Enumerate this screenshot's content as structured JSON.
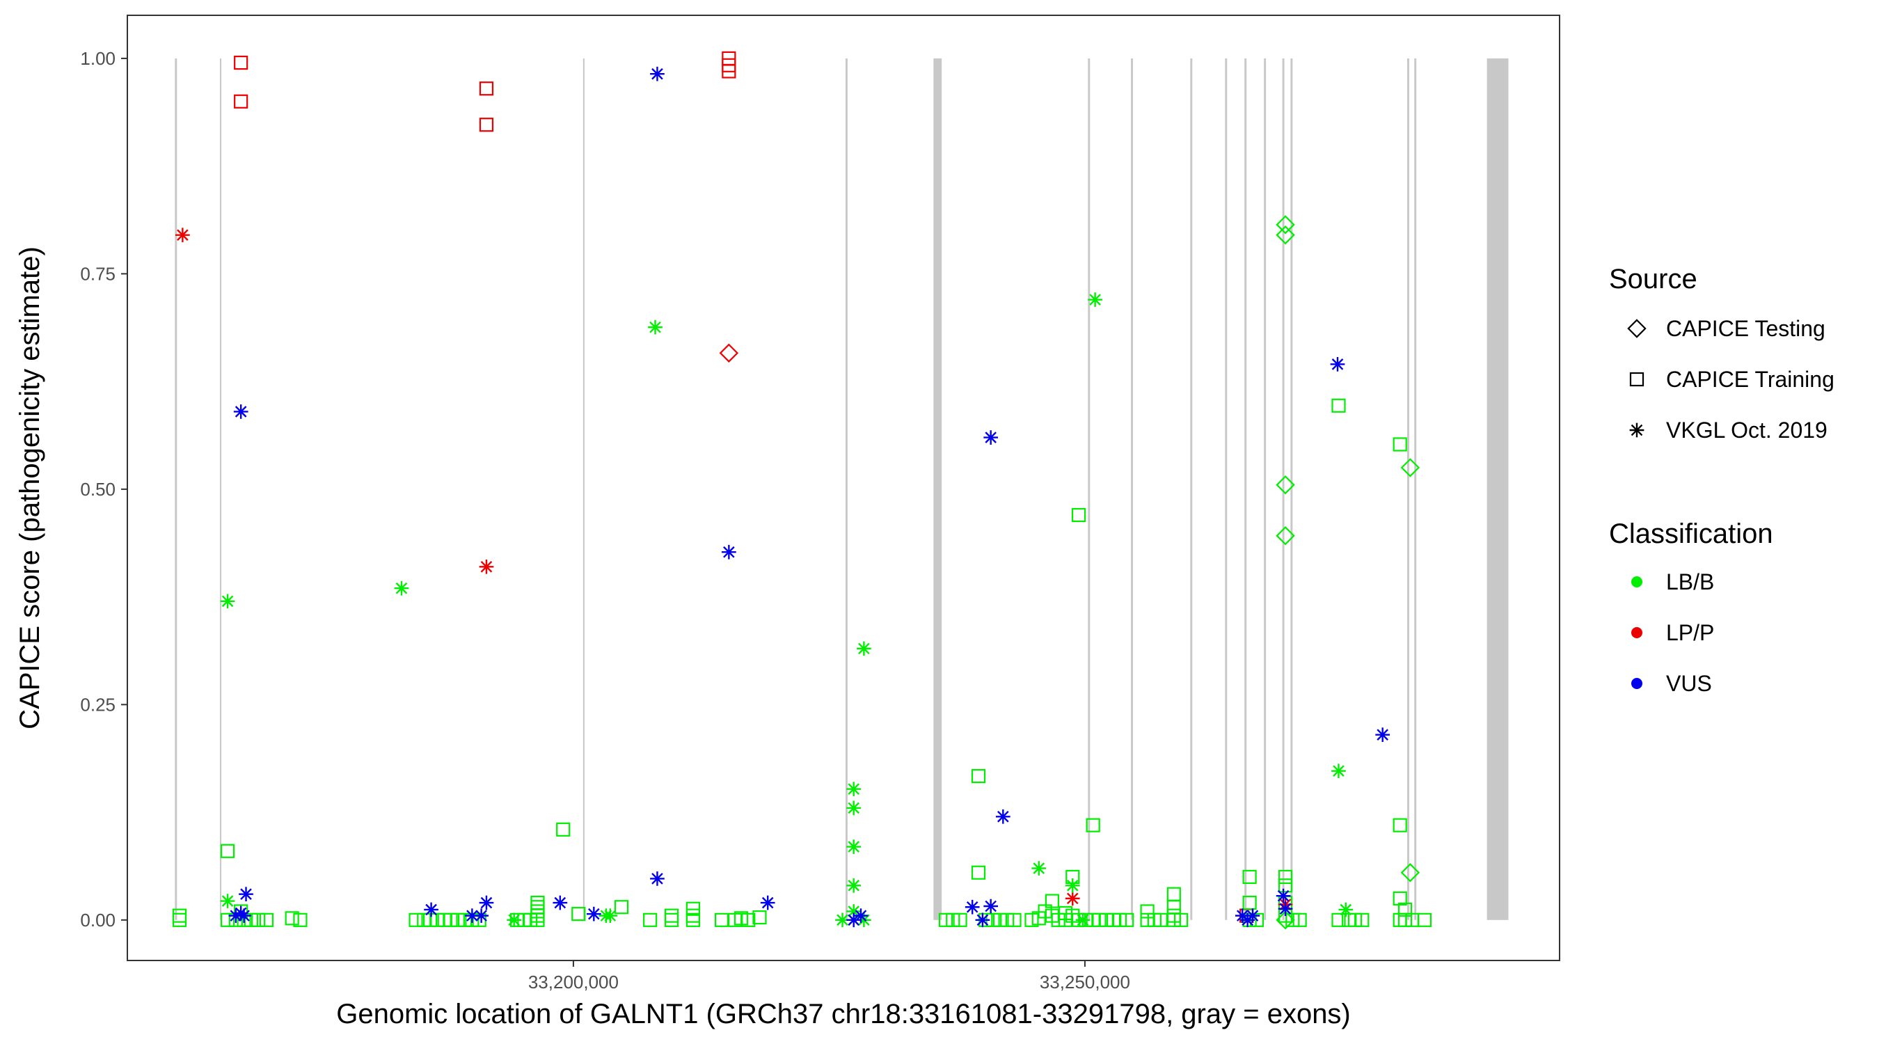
{
  "chart_data": {
    "type": "scatter",
    "title": "",
    "xlabel": "Genomic location of GALNT1 (GRCh37 chr18:33161081-33291798, gray = exons)",
    "ylabel": "CAPICE score (pathogenicity estimate)",
    "xlim": [
      33156400,
      33296400
    ],
    "ylim": [
      -0.047,
      1.05
    ],
    "x_ticks": [
      33200000,
      33250000
    ],
    "x_tick_labels": [
      "33,200,000",
      "33,250,000"
    ],
    "y_ticks": [
      0,
      0.25,
      0.5,
      0.75,
      1.0
    ],
    "y_tick_labels": [
      "0.00",
      "0.25",
      "0.50",
      "0.75",
      "1.00"
    ],
    "grid": false,
    "exons": [
      [
        33161050,
        33161250
      ],
      [
        33165450,
        33165550
      ],
      [
        33200950,
        33201050
      ],
      [
        33226600,
        33226800
      ],
      [
        33235200,
        33236000
      ],
      [
        33250300,
        33250500
      ],
      [
        33254500,
        33254700
      ],
      [
        33260300,
        33260500
      ],
      [
        33263700,
        33263900
      ],
      [
        33265600,
        33265800
      ],
      [
        33267500,
        33267700
      ],
      [
        33269300,
        33269500
      ],
      [
        33270100,
        33270300
      ],
      [
        33281500,
        33281700
      ],
      [
        33282200,
        33282400
      ],
      [
        33289300,
        33291400
      ]
    ],
    "legend": {
      "placement": "right",
      "source": {
        "title": "Source",
        "items": [
          {
            "label": "CAPICE Testing",
            "shape": "diamond"
          },
          {
            "label": "CAPICE Training",
            "shape": "square"
          },
          {
            "label": "VKGL Oct. 2019",
            "shape": "asterisk"
          }
        ]
      },
      "classification": {
        "title": "Classification",
        "items": [
          {
            "label": "LB/B",
            "color": "#00ee00"
          },
          {
            "label": "LP/P",
            "color": "#ee0000"
          },
          {
            "label": "VUS",
            "color": "#0000ee"
          }
        ]
      }
    },
    "series": [
      {
        "source": "CAPICE Training",
        "classification": "LP/P",
        "points": [
          [
            33167500,
            0.995
          ],
          [
            33167500,
            0.95
          ],
          [
            33191500,
            0.965
          ],
          [
            33191500,
            0.923
          ],
          [
            33215200,
            1.0
          ],
          [
            33215200,
            0.992
          ],
          [
            33215200,
            0.985
          ],
          [
            33265800,
            0.005
          ]
        ]
      },
      {
        "source": "CAPICE Training",
        "classification": "LB/B",
        "points": [
          [
            33161500,
            0.005
          ],
          [
            33161500,
            0.0
          ],
          [
            33166200,
            0.08
          ],
          [
            33166200,
            0.0
          ],
          [
            33167000,
            0.0
          ],
          [
            33167500,
            0.01
          ],
          [
            33167800,
            0.0
          ],
          [
            33168500,
            0.0
          ],
          [
            33169200,
            0.0
          ],
          [
            33170000,
            0.0
          ],
          [
            33172500,
            0.002
          ],
          [
            33173300,
            0.0
          ],
          [
            33184600,
            0.0
          ],
          [
            33185400,
            0.0
          ],
          [
            33186000,
            0.0
          ],
          [
            33186700,
            0.0
          ],
          [
            33187400,
            0.0
          ],
          [
            33188000,
            0.0
          ],
          [
            33188700,
            0.0
          ],
          [
            33189400,
            0.0
          ],
          [
            33190100,
            0.0
          ],
          [
            33190800,
            0.0
          ],
          [
            33194500,
            0.0
          ],
          [
            33195200,
            0.0
          ],
          [
            33195800,
            0.0
          ],
          [
            33196500,
            0.0
          ],
          [
            33196500,
            0.005
          ],
          [
            33196500,
            0.01
          ],
          [
            33196500,
            0.015
          ],
          [
            33196500,
            0.02
          ],
          [
            33199000,
            0.105
          ],
          [
            33200500,
            0.007
          ],
          [
            33204700,
            0.015
          ],
          [
            33207500,
            0.0
          ],
          [
            33209600,
            0.005
          ],
          [
            33209600,
            0.0
          ],
          [
            33211700,
            0.0
          ],
          [
            33211700,
            0.005
          ],
          [
            33211700,
            0.013
          ],
          [
            33214500,
            0.0
          ],
          [
            33215800,
            0.0
          ],
          [
            33216400,
            0.002
          ],
          [
            33217100,
            0.0
          ],
          [
            33218200,
            0.003
          ],
          [
            33236400,
            0.0
          ],
          [
            33237100,
            0.0
          ],
          [
            33237800,
            0.0
          ],
          [
            33239600,
            0.167
          ],
          [
            33239600,
            0.055
          ],
          [
            33240300,
            0.0
          ],
          [
            33241000,
            0.0
          ],
          [
            33241700,
            0.0
          ],
          [
            33242400,
            0.0
          ],
          [
            33243100,
            0.0
          ],
          [
            33244800,
            0.0
          ],
          [
            33245500,
            0.002
          ],
          [
            33246100,
            0.01
          ],
          [
            33246800,
            0.005
          ],
          [
            33246800,
            0.022
          ],
          [
            33247400,
            0.0
          ],
          [
            33248100,
            0.0
          ],
          [
            33248100,
            0.008
          ],
          [
            33248800,
            0.005
          ],
          [
            33248800,
            0.05
          ],
          [
            33249400,
            0.47
          ],
          [
            33249400,
            0.0
          ],
          [
            33250100,
            0.0
          ],
          [
            33250800,
            0.0
          ],
          [
            33250800,
            0.11
          ],
          [
            33251400,
            0.0
          ],
          [
            33252100,
            0.0
          ],
          [
            33252800,
            0.0
          ],
          [
            33253400,
            0.0
          ],
          [
            33254100,
            0.0
          ],
          [
            33256100,
            0.01
          ],
          [
            33256100,
            0.0
          ],
          [
            33256800,
            0.0
          ],
          [
            33257400,
            0.0
          ],
          [
            33258700,
            0.03
          ],
          [
            33258700,
            0.015
          ],
          [
            33258700,
            0.005
          ],
          [
            33258700,
            0.0
          ],
          [
            33259400,
            0.0
          ],
          [
            33266100,
            0.05
          ],
          [
            33266100,
            0.02
          ],
          [
            33266100,
            0.0
          ],
          [
            33266800,
            0.0
          ],
          [
            33269600,
            0.05
          ],
          [
            33269600,
            0.04
          ],
          [
            33269600,
            0.02
          ],
          [
            33269600,
            0.005
          ],
          [
            33270300,
            0.0
          ],
          [
            33271000,
            0.0
          ],
          [
            33274800,
            0.597
          ],
          [
            33274800,
            0.0
          ],
          [
            33275800,
            0.0
          ],
          [
            33276400,
            0.0
          ],
          [
            33277100,
            0.0
          ],
          [
            33280800,
            0.552
          ],
          [
            33280800,
            0.11
          ],
          [
            33280800,
            0.025
          ],
          [
            33280800,
            0.0
          ],
          [
            33281300,
            0.012
          ],
          [
            33281300,
            0.0
          ],
          [
            33282000,
            0.0
          ],
          [
            33283200,
            0.0
          ]
        ]
      },
      {
        "source": "CAPICE Testing",
        "classification": "LP/P",
        "points": [
          [
            33215200,
            0.658
          ]
        ]
      },
      {
        "source": "CAPICE Testing",
        "classification": "LB/B",
        "points": [
          [
            33269600,
            0.807
          ],
          [
            33269600,
            0.795
          ],
          [
            33269600,
            0.505
          ],
          [
            33269600,
            0.446
          ],
          [
            33281800,
            0.525
          ],
          [
            33281800,
            0.055
          ],
          [
            33269600,
            0.0
          ]
        ]
      },
      {
        "source": "VKGL Oct. 2019",
        "classification": "LP/P",
        "points": [
          [
            33161800,
            0.795
          ],
          [
            33191500,
            0.41
          ],
          [
            33248800,
            0.025
          ],
          [
            33269600,
            0.018
          ]
        ]
      },
      {
        "source": "VKGL Oct. 2019",
        "classification": "LB/B",
        "points": [
          [
            33166200,
            0.022
          ],
          [
            33166200,
            0.37
          ],
          [
            33183200,
            0.385
          ],
          [
            33194200,
            0.0
          ],
          [
            33203200,
            0.005
          ],
          [
            33203600,
            0.005
          ],
          [
            33208000,
            0.688
          ],
          [
            33226300,
            0.0
          ],
          [
            33227400,
            0.152
          ],
          [
            33227400,
            0.13
          ],
          [
            33227400,
            0.085
          ],
          [
            33227400,
            0.04
          ],
          [
            33227400,
            0.01
          ],
          [
            33227400,
            0.0
          ],
          [
            33228400,
            0.315
          ],
          [
            33228400,
            0.0
          ],
          [
            33245500,
            0.06
          ],
          [
            33248800,
            0.04
          ],
          [
            33249800,
            0.0
          ],
          [
            33251000,
            0.72
          ],
          [
            33274800,
            0.173
          ],
          [
            33275500,
            0.012
          ]
        ]
      },
      {
        "source": "VKGL Oct. 2019",
        "classification": "VUS",
        "points": [
          [
            33167500,
            0.59
          ],
          [
            33167000,
            0.005
          ],
          [
            33167500,
            0.008
          ],
          [
            33167800,
            0.005
          ],
          [
            33168000,
            0.03
          ],
          [
            33186100,
            0.012
          ],
          [
            33190100,
            0.005
          ],
          [
            33191000,
            0.005
          ],
          [
            33191500,
            0.02
          ],
          [
            33198700,
            0.02
          ],
          [
            33202000,
            0.007
          ],
          [
            33208200,
            0.982
          ],
          [
            33208200,
            0.048
          ],
          [
            33215200,
            0.427
          ],
          [
            33219000,
            0.02
          ],
          [
            33228100,
            0.005
          ],
          [
            33227400,
            0.0
          ],
          [
            33239000,
            0.015
          ],
          [
            33240000,
            0.0
          ],
          [
            33240800,
            0.016
          ],
          [
            33240800,
            0.56
          ],
          [
            33242000,
            0.12
          ],
          [
            33265400,
            0.005
          ],
          [
            33265900,
            0.0
          ],
          [
            33266400,
            0.005
          ],
          [
            33269400,
            0.028
          ],
          [
            33269600,
            0.013
          ],
          [
            33274700,
            0.645
          ],
          [
            33279100,
            0.215
          ]
        ]
      }
    ]
  }
}
